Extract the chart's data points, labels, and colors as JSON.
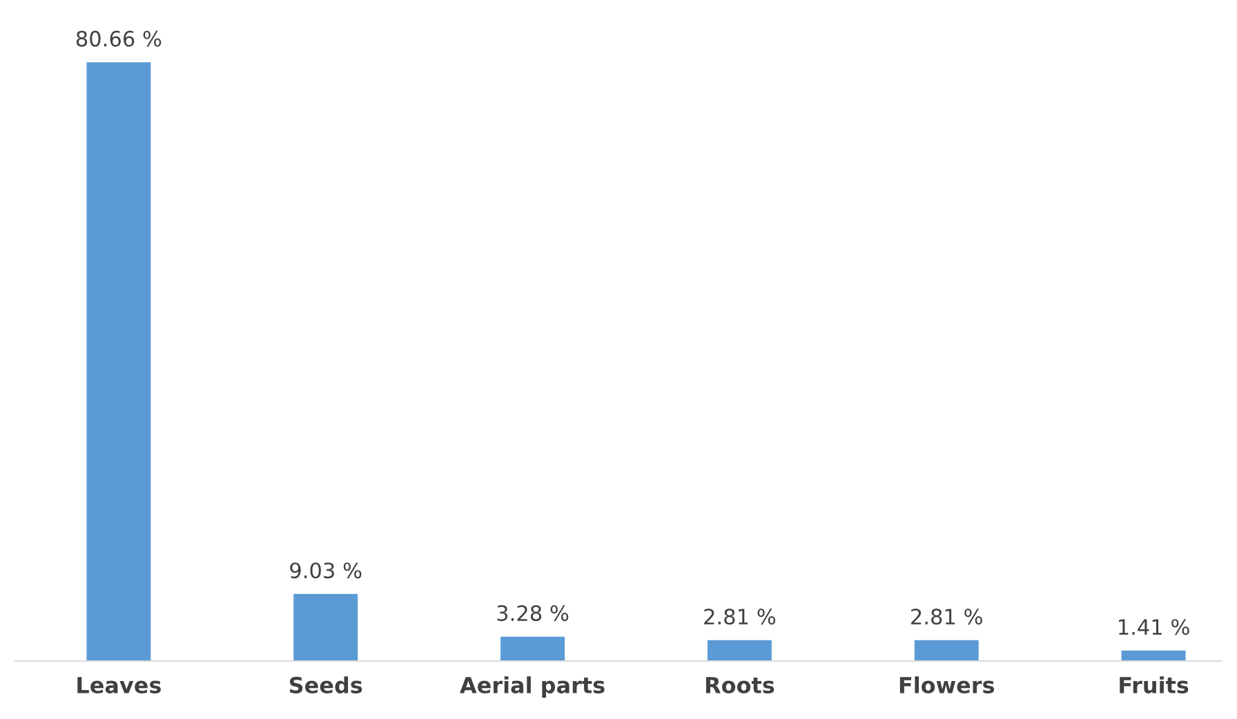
{
  "chart_data": {
    "type": "bar",
    "categories": [
      "Leaves",
      "Seeds",
      "Aerial parts",
      "Roots",
      "Flowers",
      "Fruits"
    ],
    "values": [
      80.66,
      9.03,
      3.28,
      2.81,
      2.81,
      1.41
    ],
    "value_labels": [
      "80.66 %",
      "9.03 %",
      "3.28 %",
      "2.81 %",
      "2.81 %",
      "1.41 %"
    ],
    "color": "#5b9bd5",
    "grid": false,
    "legend": false
  }
}
